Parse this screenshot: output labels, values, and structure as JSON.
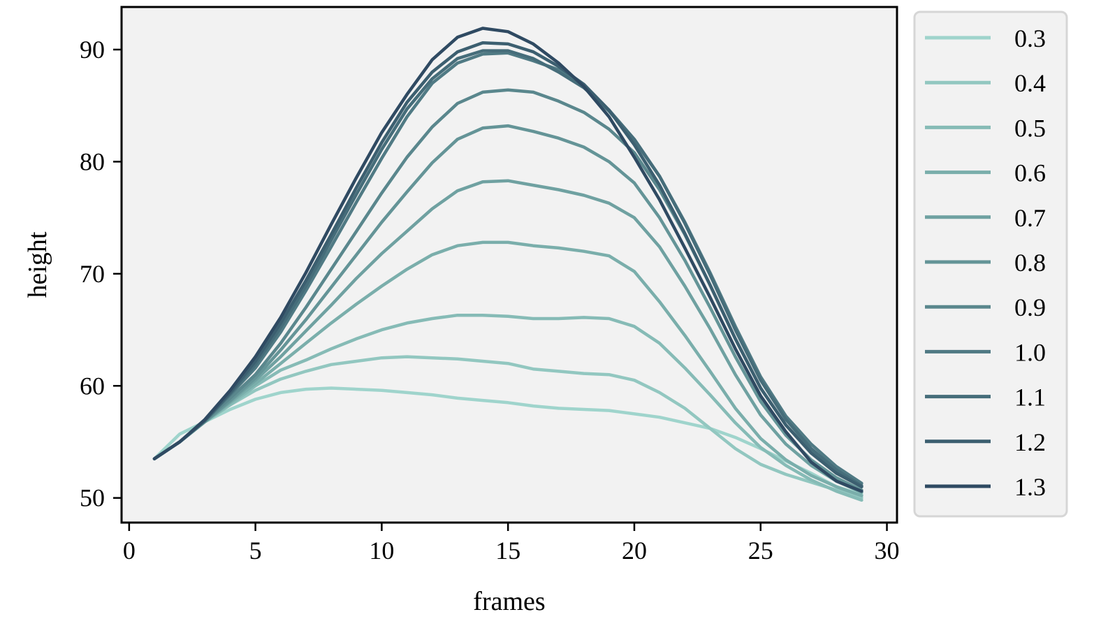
{
  "chart_data": {
    "type": "line",
    "title": "",
    "xlabel": "frames",
    "ylabel": "height",
    "xlim": [
      -0.3,
      30.4
    ],
    "ylim": [
      47838,
      93.8
    ],
    "xticks": [
      0,
      5,
      10,
      15,
      20,
      25,
      30
    ],
    "yticks": [
      50,
      60,
      70,
      80,
      90
    ],
    "grid": false,
    "legend_position": "outside-right",
    "x": [
      1,
      2,
      3,
      4,
      5,
      6,
      7,
      8,
      9,
      10,
      11,
      12,
      13,
      14,
      15,
      16,
      17,
      18,
      19,
      20,
      21,
      22,
      23,
      24,
      25,
      26,
      27,
      28,
      29
    ],
    "series": [
      {
        "name": "0.3",
        "color": "#9fd4cc",
        "values": [
          53.5,
          55.7,
          56.8,
          57.9,
          58.8,
          59.4,
          59.7,
          59.8,
          59.7,
          59.6,
          59.4,
          59.2,
          58.9,
          58.7,
          58.5,
          58.2,
          58.0,
          57.9,
          57.8,
          57.5,
          57.2,
          56.7,
          56.2,
          55.4,
          54.4,
          53.3,
          52.2,
          51.0,
          50.3
        ]
      },
      {
        "name": "0.4",
        "color": "#92c7c0",
        "values": [
          53.5,
          55.0,
          56.8,
          58.3,
          59.6,
          60.6,
          61.3,
          61.9,
          62.2,
          62.5,
          62.6,
          62.5,
          62.4,
          62.2,
          62.0,
          61.5,
          61.3,
          61.1,
          61.0,
          60.5,
          59.4,
          58.0,
          56.2,
          54.4,
          53.0,
          52.1,
          51.4,
          50.7,
          50.0
        ]
      },
      {
        "name": "0.5",
        "color": "#86bbb6",
        "values": [
          53.5,
          55.0,
          56.8,
          58.3,
          60.0,
          61.4,
          62.3,
          63.3,
          64.2,
          65.0,
          65.6,
          66.0,
          66.3,
          66.3,
          66.2,
          66.0,
          66.0,
          66.1,
          66.0,
          65.3,
          63.8,
          61.6,
          59.2,
          56.7,
          54.5,
          52.9,
          51.6,
          50.6,
          49.8
        ]
      },
      {
        "name": "0.6",
        "color": "#7aaeab",
        "values": [
          53.5,
          55.0,
          56.8,
          58.5,
          60.2,
          62.0,
          63.8,
          65.6,
          67.3,
          68.9,
          70.4,
          71.7,
          72.5,
          72.8,
          72.8,
          72.5,
          72.3,
          72.0,
          71.6,
          70.2,
          67.5,
          64.5,
          61.3,
          58.0,
          55.3,
          53.4,
          52.0,
          51.0,
          50.2
        ]
      },
      {
        "name": "0.7",
        "color": "#6fa1a1",
        "values": [
          53.5,
          55.0,
          56.8,
          58.6,
          60.5,
          62.6,
          64.9,
          67.2,
          69.6,
          71.8,
          73.8,
          75.8,
          77.4,
          78.2,
          78.3,
          77.9,
          77.5,
          77.0,
          76.3,
          75.0,
          72.4,
          68.9,
          65.1,
          61.0,
          57.4,
          54.8,
          52.9,
          51.5,
          50.5
        ]
      },
      {
        "name": "0.8",
        "color": "#649497",
        "values": [
          53.5,
          55.0,
          56.8,
          58.7,
          60.7,
          63.2,
          65.9,
          68.8,
          71.7,
          74.6,
          77.3,
          79.9,
          82.0,
          83.0,
          83.2,
          82.7,
          82.1,
          81.3,
          80.0,
          78.1,
          75.0,
          71.2,
          67.0,
          62.6,
          58.6,
          55.6,
          53.4,
          51.8,
          50.7
        ]
      },
      {
        "name": "0.9",
        "color": "#5a878d",
        "values": [
          53.5,
          55.0,
          56.9,
          58.9,
          61.0,
          63.8,
          67.0,
          70.4,
          73.8,
          77.2,
          80.4,
          83.1,
          85.2,
          86.2,
          86.4,
          86.2,
          85.4,
          84.4,
          82.9,
          80.8,
          77.5,
          73.5,
          69.0,
          64.2,
          59.8,
          56.5,
          54.1,
          52.3,
          51.0
        ]
      },
      {
        "name": "1.0",
        "color": "#507a84",
        "values": [
          53.5,
          55.0,
          56.9,
          59.2,
          61.6,
          64.8,
          68.5,
          72.4,
          76.4,
          80.3,
          84.0,
          87.0,
          88.8,
          89.6,
          89.7,
          89.0,
          88.2,
          86.7,
          84.5,
          81.9,
          78.7,
          74.6,
          70.1,
          65.3,
          60.8,
          57.3,
          54.8,
          52.8,
          51.3
        ]
      },
      {
        "name": "1.1",
        "color": "#466d7a",
        "values": [
          53.5,
          55.0,
          56.9,
          59.3,
          61.9,
          65.2,
          68.9,
          73.0,
          77.1,
          81.1,
          84.7,
          87.4,
          89.2,
          89.9,
          89.9,
          89.2,
          88.0,
          86.6,
          84.6,
          82.0,
          78.7,
          74.5,
          69.9,
          65.0,
          60.5,
          57.0,
          54.4,
          52.5,
          51.1
        ]
      },
      {
        "name": "1.2",
        "color": "#3c5f70",
        "values": [
          53.5,
          55.0,
          56.9,
          59.4,
          62.2,
          65.6,
          69.4,
          73.5,
          77.7,
          81.7,
          85.3,
          88.0,
          89.8,
          90.6,
          90.5,
          89.8,
          88.5,
          86.9,
          84.6,
          81.5,
          77.9,
          73.6,
          69.0,
          64.2,
          59.8,
          56.5,
          54.0,
          52.2,
          51.0
        ]
      },
      {
        "name": "1.3",
        "color": "#2f4a62",
        "values": [
          53.5,
          55.0,
          57.0,
          59.6,
          62.6,
          66.1,
          70.1,
          74.4,
          78.6,
          82.6,
          86.0,
          89.1,
          91.1,
          91.9,
          91.6,
          90.5,
          88.8,
          86.7,
          84.0,
          80.4,
          76.6,
          72.3,
          67.9,
          63.3,
          59.1,
          55.9,
          53.2,
          51.5,
          50.6
        ]
      }
    ]
  }
}
